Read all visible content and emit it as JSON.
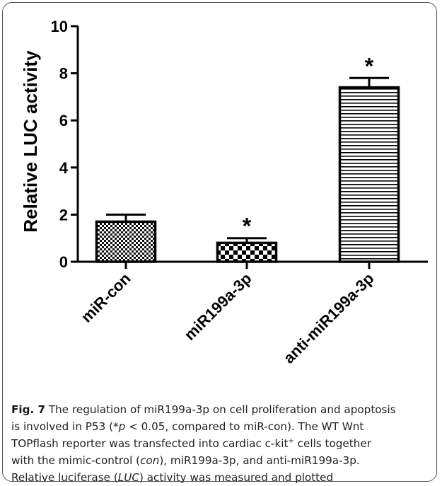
{
  "chart_data": {
    "type": "bar",
    "ylabel": "Relative LUC activity",
    "xlabel": "",
    "ylim": [
      0,
      10
    ],
    "yticks": [
      0,
      2,
      4,
      6,
      8,
      10
    ],
    "categories": [
      "miR-con",
      "miR199a-3p",
      "anti-miR199a-3p"
    ],
    "values": [
      1.7,
      0.8,
      7.4
    ],
    "errors": [
      0.3,
      0.2,
      0.4
    ],
    "significance": [
      "",
      "*",
      "*"
    ],
    "patterns": [
      "fine-checker",
      "coarse-checker",
      "horizontal-stripes"
    ],
    "grid": false
  },
  "caption": {
    "fig_label": "Fig. 7",
    "line1_rest": " The regulation of miR199a-3p on cell proliferation and apoptosis",
    "line2_a": "is involved in P53 (*",
    "line2_p": "p",
    "line2_b": " < 0.05, compared to miR-con). The WT Wnt",
    "line3_a": "TOPflash reporter was transfected into cardiac c-kit",
    "line3_sup": "+",
    "line3_b": " cells together",
    "line4_a": "with the mimic-control (",
    "line4_con": "con",
    "line4_b": "), miR199a-3p, and anti-miR199a-3p.",
    "line5_a": "Relative luciferase (",
    "line5_luc": "LUC",
    "line5_b": ") activity was measured and plotted"
  }
}
